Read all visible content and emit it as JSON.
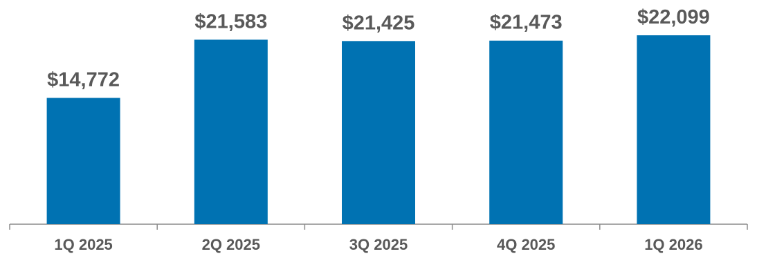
{
  "chart_data": {
    "type": "bar",
    "title": "",
    "xlabel": "",
    "ylabel": "",
    "categories": [
      "1Q 2025",
      "2Q 2025",
      "3Q 2025",
      "4Q 2025",
      "1Q 2026"
    ],
    "values": [
      14772,
      21583,
      21425,
      21473,
      22099
    ],
    "value_labels": [
      "$14,772",
      "$21,583",
      "$21,425",
      "$21,473",
      "$22,099"
    ],
    "ylim": [
      0,
      22099
    ],
    "grid": false,
    "legend": "none",
    "colors": {
      "bar": "#0072B2",
      "label": "#595959",
      "axis": "#8C8C8C"
    }
  }
}
